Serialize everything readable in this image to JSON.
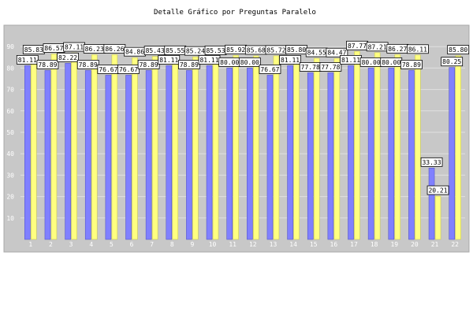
{
  "chart_data": {
    "type": "bar",
    "title": "Detalle Gráfico por Preguntas Paralelo",
    "xlabel": "",
    "ylabel": "",
    "categories": [
      "1",
      "2",
      "3",
      "4",
      "5",
      "6",
      "7",
      "8",
      "9",
      "10",
      "11",
      "12",
      "13",
      "14",
      "15",
      "16",
      "17",
      "18",
      "19",
      "20",
      "21",
      "22"
    ],
    "ylim": [
      0,
      100
    ],
    "yticks": [
      10,
      20,
      30,
      40,
      50,
      60,
      70,
      80,
      90
    ],
    "grid": true,
    "legend": "none",
    "series": [
      {
        "values": [
          81.11,
          78.89,
          82.22,
          78.89,
          76.67,
          76.67,
          78.89,
          81.11,
          78.89,
          81.11,
          80.0,
          80.0,
          76.67,
          81.11,
          77.78,
          77.78,
          81.11,
          80.0,
          80.0,
          78.89,
          33.33,
          80.25
        ]
      },
      {
        "values": [
          85.83,
          86.57,
          87.11,
          86.23,
          86.26,
          84.86,
          85.43,
          85.55,
          85.24,
          85.53,
          85.92,
          85.68,
          85.72,
          85.8,
          84.55,
          84.47,
          87.77,
          87.21,
          86.27,
          86.11,
          20.21,
          85.8
        ]
      }
    ],
    "value_labels": [
      "81.11",
      "85.83",
      "78.89",
      "86.57",
      "82.22",
      "87.11",
      "78.89",
      "86.23",
      "76.67",
      "86.26",
      "76.67",
      "84.86",
      "78.89",
      "85.43",
      "81.11",
      "85.55",
      "78.89",
      "85.24",
      "81.11",
      "85.53",
      "80.00",
      "85.92",
      "80.00",
      "85.68",
      "76.67",
      "85.72",
      "81.11",
      "85.80",
      "77.78",
      "84.55",
      "77.78",
      "84.47",
      "81.11",
      "87.77",
      "80.00",
      "87.21",
      "80.00",
      "86.27",
      "78.89",
      "86.11",
      "33.33",
      "20.21",
      "80.25",
      "85.80"
    ],
    "colors": {
      "series_1": "#8080ff",
      "series_2": "#ffff80",
      "plot_bg": "#c8c8c8",
      "grid": "#e0e0e0"
    }
  }
}
